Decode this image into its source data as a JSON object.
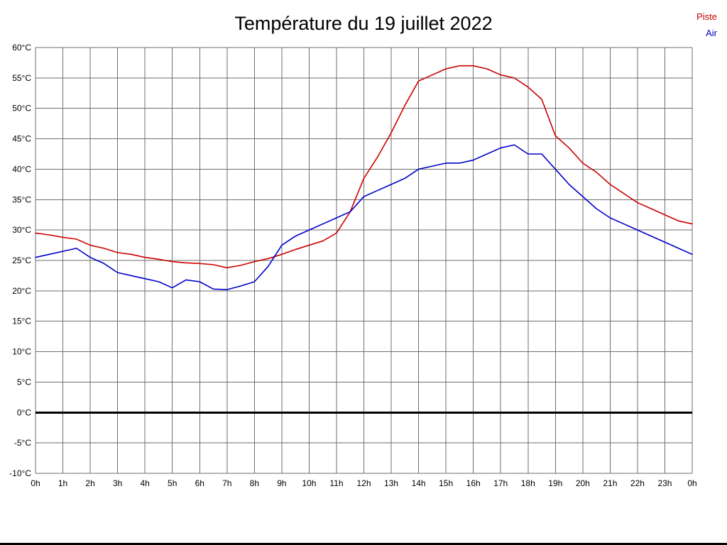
{
  "page": {
    "title": "Température du 19 juillet 2022"
  },
  "style": {
    "grid_color": "#6e6e6e",
    "zero_line_color": "#000000",
    "background": "#ffffff",
    "piste_color": "#cc0000",
    "air_color": "#0000cc"
  },
  "chart_data": {
    "type": "line",
    "title": "Température du 19 juillet 2022",
    "xlabel": "",
    "ylabel": "",
    "grid": true,
    "legend_position": "top-right",
    "xlim": [
      0,
      24
    ],
    "ylim": [
      -10,
      60
    ],
    "x_tick_labels": [
      "0h",
      "1h",
      "2h",
      "3h",
      "4h",
      "5h",
      "6h",
      "7h",
      "8h",
      "9h",
      "10h",
      "11h",
      "12h",
      "13h",
      "14h",
      "15h",
      "16h",
      "17h",
      "18h",
      "19h",
      "20h",
      "21h",
      "22h",
      "23h",
      "0h"
    ],
    "y_ticks": [
      60,
      55,
      50,
      45,
      40,
      35,
      30,
      25,
      20,
      15,
      10,
      5,
      0,
      -5,
      -10
    ],
    "y_tick_labels": [
      "60°C",
      "55°C",
      "50°C",
      "45°C",
      "40°C",
      "35°C",
      "30°C",
      "25°C",
      "20°C",
      "15°C",
      "10°C",
      "5°C",
      "0°C",
      "-5°C",
      "-10°C"
    ],
    "zero_line": {
      "value": 0,
      "color": "#000000",
      "width": 3
    },
    "x": [
      0,
      0.5,
      1,
      1.5,
      2,
      2.5,
      3,
      3.5,
      4,
      4.5,
      5,
      5.5,
      6,
      6.5,
      7,
      7.5,
      8,
      8.5,
      9,
      9.5,
      10,
      10.5,
      11,
      11.5,
      12,
      12.5,
      13,
      13.5,
      14,
      14.5,
      15,
      15.5,
      16,
      16.5,
      17,
      17.5,
      18,
      18.5,
      19,
      19.5,
      20,
      20.5,
      21,
      21.5,
      22,
      22.5,
      23,
      23.5,
      24
    ],
    "series": [
      {
        "name": "Piste",
        "color": "#cc0000",
        "values": [
          29.5,
          29.2,
          28.8,
          28.5,
          27.5,
          27,
          26.3,
          26,
          25.5,
          25.2,
          24.8,
          24.6,
          24.5,
          24.3,
          23.8,
          24.2,
          24.8,
          25.3,
          26,
          26.8,
          27.5,
          28.2,
          29.5,
          33,
          38.5,
          42,
          46,
          50.5,
          54.5,
          55.5,
          56.5,
          57,
          57,
          56.5,
          55.5,
          55,
          53.5,
          51.5,
          45.5,
          43.5,
          41,
          39.5,
          37.5,
          36,
          34.5,
          33.5,
          32.5,
          31.5,
          31
        ]
      },
      {
        "name": "Air",
        "color": "#0000cc",
        "values": [
          25.5,
          26,
          26.5,
          27,
          25.5,
          24.5,
          23,
          22.5,
          22,
          21.5,
          20.5,
          21.8,
          21.5,
          20.3,
          20.2,
          20.8,
          21.5,
          24,
          27.5,
          29,
          30,
          31,
          32,
          33,
          35.5,
          36.5,
          37.5,
          38.5,
          40,
          40.5,
          41,
          41,
          41.5,
          42.5,
          43.5,
          44,
          42.5,
          42.5,
          40,
          37.5,
          35.5,
          33.5,
          32,
          31,
          30,
          29,
          28,
          27,
          26
        ]
      }
    ]
  }
}
